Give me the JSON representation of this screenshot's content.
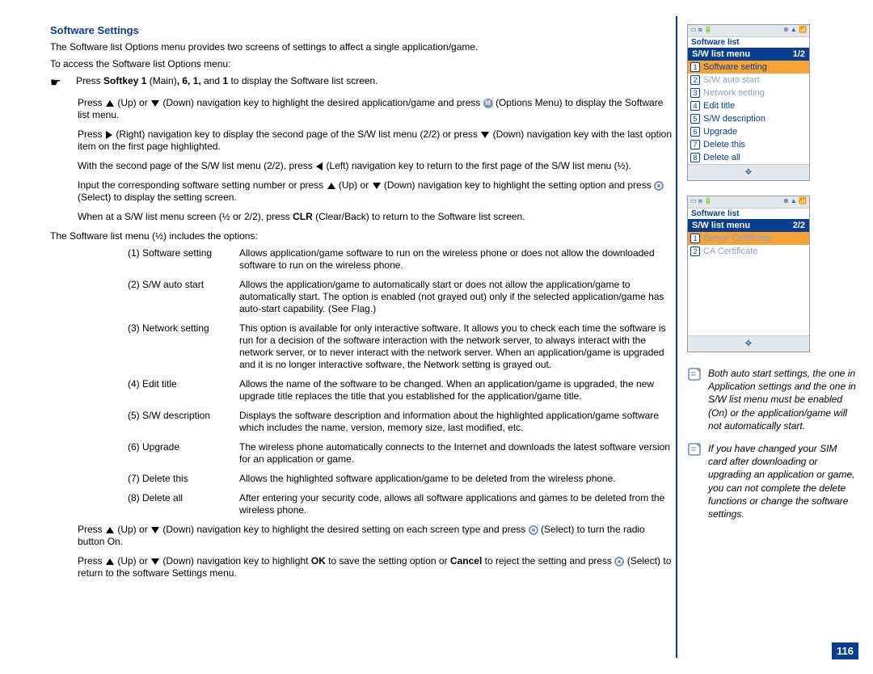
{
  "title": "Software Settings",
  "intro1": "The Software list Options menu provides two screens of settings to affect a single application/game.",
  "intro2": "To access the Software list Options menu:",
  "step1_pre": "Press ",
  "step1_bold": "Softkey 1",
  "step1_mid": " (Main)",
  "step1_bold2": ", 6, 1,",
  "step1_mid2": " and ",
  "step1_bold3": "1",
  "step1_post": " to display the Software list screen.",
  "step2a": "Press ",
  "step2b": " (Up) or ",
  "step2c": " (Down) navigation key to highlight the desired application/game and press ",
  "step2d": " (Options Menu) to display the Software list menu.",
  "step3a": "Press ",
  "step3b": " (Right) navigation key to display the second page of the S/W list menu (2/2) or press ",
  "step3c": " (Down) navigation key with the last option item on the first page highlighted.",
  "step4a": "With the second page of the S/W list menu (2/2), press ",
  "step4b": " (Left) navigation key to return to the first page of the S/W list menu (½).",
  "step5a": "Input the corresponding software setting number or press ",
  "step5b": " (Up) or ",
  "step5c": " (Down) navigation key to highlight the setting option and press ",
  "step5d": " (Select) to display the setting screen.",
  "step6a": "When at a S/W list menu screen (½ or 2/2), press ",
  "step6b": "CLR",
  "step6c": " (Clear/Back) to return to the Software list screen.",
  "list_intro": "The Software list menu (½) includes the options:",
  "options": [
    {
      "n": "(1) Software setting",
      "d": "Allows application/game software to run on the wireless phone or does not allow the downloaded software to run on the wireless phone."
    },
    {
      "n": "(2) S/W auto start",
      "d": "Allows the application/game to automatically start or does not allow the application/game to automatically start. The option is enabled (not grayed out) only if the selected application/game has auto-start capability. (See Flag.)"
    },
    {
      "n": "(3) Network setting",
      "d": "This option is available for only interactive software. It allows you to check each time the software is run for a decision of the software interaction with the network server, to always interact with the network server, or to never interact with the network server. When an application/game is upgraded and it is no longer interactive software, the Network setting is grayed out."
    },
    {
      "n": "(4) Edit title",
      "d": "Allows the name of the software to be changed. When an application/game is upgraded, the new upgrade title replaces the title that you established for the application/game title."
    },
    {
      "n": "(5) S/W description",
      "d": "Displays the software description and information about the highlighted application/game software which includes the name, version, memory size, last modified, etc."
    },
    {
      "n": "(6) Upgrade",
      "d": "The wireless phone automatically connects to the Internet and downloads the latest software version for an application or game."
    },
    {
      "n": "(7) Delete this",
      "d": "Allows the highlighted software application/game to be deleted from the wireless phone."
    },
    {
      "n": "(8) Delete all",
      "d": "After entering your security code, allows all software applications and games to be deleted from the wireless phone."
    }
  ],
  "tail1a": "Press ",
  "tail1b": " (Up) or ",
  "tail1c": " (Down) navigation key to highlight the desired setting on each screen type and press ",
  "tail1d": " (Select) to turn the radio button On.",
  "tail2a": "Press ",
  "tail2b": " (Up) or ",
  "tail2c": " (Down) navigation key to highlight ",
  "tail2_ok": "OK",
  "tail2d": " to save the setting option or ",
  "tail2_cancel": "Cancel",
  "tail2e": " to reject the setting and press ",
  "tail2f": " (Select) to return to the software Settings menu.",
  "phone1": {
    "crumb": "Software list",
    "title": "S/W list menu",
    "page": "1/2",
    "items": [
      {
        "n": "1",
        "l": "Software setting",
        "sel": true,
        "gray": false
      },
      {
        "n": "2",
        "l": "S/W auto start",
        "sel": false,
        "gray": true
      },
      {
        "n": "3",
        "l": "Network setting",
        "sel": false,
        "gray": true
      },
      {
        "n": "4",
        "l": "Edit title",
        "sel": false,
        "gray": false
      },
      {
        "n": "5",
        "l": "S/W description",
        "sel": false,
        "gray": false
      },
      {
        "n": "6",
        "l": "Upgrade",
        "sel": false,
        "gray": false
      },
      {
        "n": "7",
        "l": "Delete this",
        "sel": false,
        "gray": false
      },
      {
        "n": "8",
        "l": "Delete all",
        "sel": false,
        "gray": false
      }
    ]
  },
  "phone2": {
    "crumb": "Software list",
    "title": "S/W list menu",
    "page": "2/2",
    "items": [
      {
        "n": "1",
        "l": "Server Certificate",
        "sel": true,
        "gray": true
      },
      {
        "n": "2",
        "l": "CA Certificate",
        "sel": false,
        "gray": true
      }
    ]
  },
  "note1": "Both auto start settings, the one in Application settings and the one in S/W list menu must be enabled (On) or the application/game will not automatically start.",
  "note2": "If you have changed your SIM card after downloading or upgrading an application or game, you can not complete the delete functions or change the software settings.",
  "pageNum": "116",
  "colors": {
    "accent": "#093e8e",
    "highlight": "#f8a23a"
  }
}
